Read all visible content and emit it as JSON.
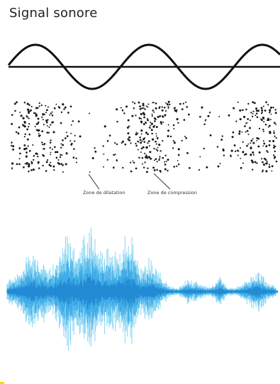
{
  "title": "Signal sonore",
  "annotations": {
    "dilatation": "Zone de dilatation",
    "compression": "Zone de compression"
  },
  "colors": {
    "sine": "#111111",
    "axis": "#111111",
    "particles": "#1a1a1a",
    "waveform_outer": "#7fd1f2",
    "waveform_inner": "#3aa8e6",
    "waveform_core": "#1f86d1",
    "accent_yellow": "#f2e000"
  }
}
